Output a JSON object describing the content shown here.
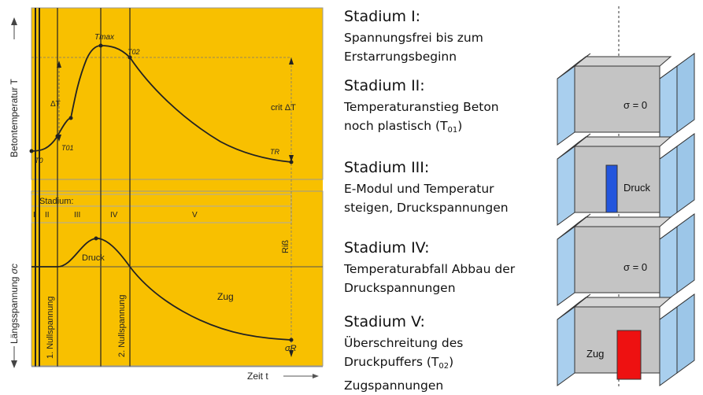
{
  "diagram": {
    "y_axis_top_label": "Betontemperatur T",
    "y_axis_bottom_label_text": "Längsspannung ",
    "y_axis_bottom_label_symbol": "σc",
    "x_axis_label": "Zeit t",
    "points": {
      "t0": "T0",
      "t01": "T01",
      "tmax": "Tmax",
      "t02": "T02",
      "tr": "TR",
      "delta_t": "ΔT",
      "crit_delta_t": "crit ΔT"
    },
    "stadium_label": "Stadium:",
    "stadium_numbers": [
      "I",
      "II",
      "III",
      "IV",
      "V"
    ],
    "nullspannung_1": "1. Nullspannung",
    "nullspannung_2": "2. Nullspannung",
    "druck_label": "Druck",
    "zug_label": "Zug",
    "riss_label": "Riß",
    "sigma_r": "σR",
    "colors": {
      "fill": "#f8c000",
      "line": "#222222",
      "grid": "#888888"
    }
  },
  "stages": [
    {
      "title": "Stadium I:",
      "desc_lines": [
        "Spannungsfrei bis zum",
        "Erstarrungsbeginn"
      ]
    },
    {
      "title": "Stadium II:",
      "desc_lines": [
        "Temperaturanstieg Beton",
        "noch plastisch (T01)"
      ]
    },
    {
      "title": "Stadium III:",
      "desc_lines": [
        "E-Modul und Temperatur",
        "steigen, Druckspannungen"
      ]
    },
    {
      "title": "Stadium IV:",
      "desc_lines": [
        "Temperaturabfall Abbau der",
        "Druckspannungen"
      ]
    },
    {
      "title": "Stadium V:",
      "desc_lines": [
        "Überschreitung des",
        "Druckpuffers (T02)",
        "Zugspannungen"
      ]
    }
  ],
  "blocks": [
    {
      "label": "σ = 0",
      "insert": "none"
    },
    {
      "label": "Druck",
      "insert": "#2255dd"
    },
    {
      "label": "σ = 0",
      "insert": "none"
    },
    {
      "label": "Zug",
      "insert": "#ee1111"
    }
  ]
}
